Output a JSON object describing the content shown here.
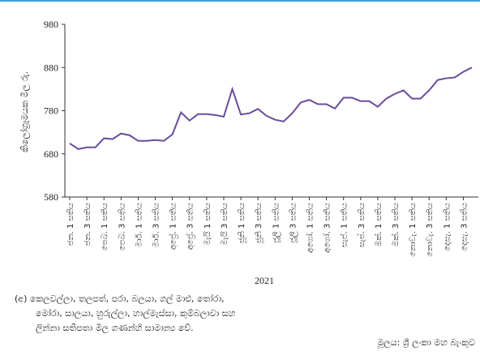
{
  "chart_data": {
    "type": "line",
    "y_label": "කිලෝග්‍රෑමයක මිල රු.",
    "x_label": "2021",
    "categories": [
      "ජන. 1 සතිය",
      null,
      "ජන. 3 සතිය",
      null,
      "පෙබ. 1 සතිය",
      null,
      "පෙබ. 3 සතිය",
      null,
      "මාර්. 1 සතිය",
      null,
      "මාර්. 3 සතිය",
      null,
      "අප්‍රේ. 1 සතිය",
      null,
      "අප්‍රේ. 3 සතිය",
      null,
      "මැයි 1 සතිය",
      null,
      "මැයි 3 සතිය",
      null,
      "ජූනි 1 සතිය",
      null,
      "ජූනි 3 සතිය",
      null,
      "ජූලි 1 සතිය",
      null,
      "ජූලි 3 සතිය",
      null,
      "අගෝ. 1 සතිය",
      null,
      "අගෝ. 3 සතිය",
      null,
      "සැප්. 1 සතිය",
      null,
      "සැප්. 3 සතිය",
      null,
      "ඔක්. 1 සතිය",
      null,
      "ඔක්. 3 සතිය",
      null,
      "නොවැ. 1 සතිය",
      null,
      "නොවැ. 3 සතිය",
      null,
      "දෙසැ. 1 සතිය",
      null,
      "දෙසැ. 3 සතිය",
      null
    ],
    "series": [
      {
        "name": "මිල",
        "color": "#6a4c9c",
        "values": [
          704,
          691,
          695,
          695,
          716,
          714,
          727,
          723,
          710,
          710,
          712,
          710,
          725,
          776,
          757,
          772,
          772,
          770,
          766,
          830,
          771,
          774,
          784,
          768,
          759,
          755,
          774,
          799,
          805,
          795,
          795,
          785,
          810,
          810,
          802,
          802,
          789,
          808,
          819,
          827,
          808,
          808,
          827,
          851,
          855,
          857,
          870,
          880
        ]
      }
    ],
    "ylim": [
      580,
      980
    ],
    "yticks": [
      580,
      680,
      780,
      880,
      980
    ],
    "notes": [
      "(අ) කෙලවල්ලා, තලපත්, පරා, බලයා, ගල් මාළු, තෝරා,",
      "මෝරා, සාලයා, හුරුල්ලා, හාල්මැස්සා, කුම්බලාවා සහ",
      "ලින්නා සතිපතා මිල ගණන්හි සාමාන්‍ය වේ."
    ],
    "source": "මූලය: ශ්‍රී ලංකා මහ බැංකුව"
  }
}
